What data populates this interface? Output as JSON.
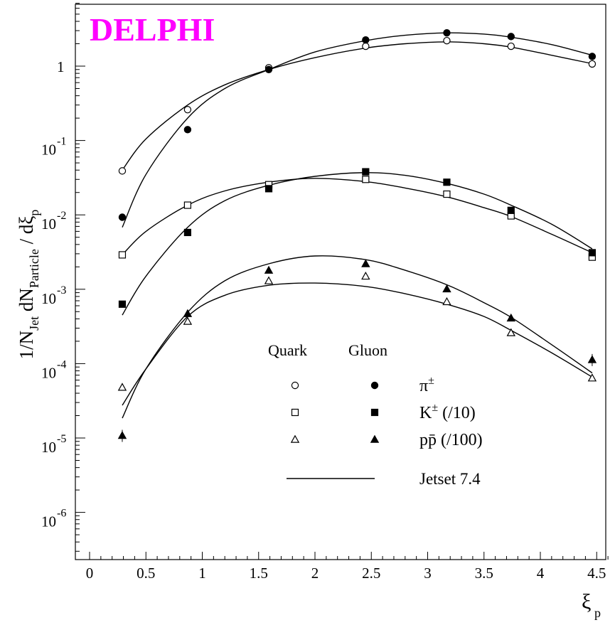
{
  "chart_data": {
    "type": "scatter",
    "title": "DELPHI",
    "title_color": "#ff00ff",
    "xlabel": "ξ",
    "xlabel_sub": "p",
    "ylabel_parts": [
      "1/N",
      "Jet",
      " dN",
      "Particle",
      " / dξ",
      "p"
    ],
    "x_ticks": [
      "0",
      "0.5",
      "1",
      "1.5",
      "2",
      "2.5",
      "3",
      "3.5",
      "4",
      "4.5"
    ],
    "y_ticks": [
      {
        "base": "10",
        "exp": "-6"
      },
      {
        "base": "10",
        "exp": "-5"
      },
      {
        "base": "10",
        "exp": "-4"
      },
      {
        "base": "10",
        "exp": "-3"
      },
      {
        "base": "10",
        "exp": "-2"
      },
      {
        "base": "10",
        "exp": "-1"
      },
      {
        "base": "1",
        "exp": ""
      }
    ],
    "xlim": [
      -0.1,
      4.65
    ],
    "ylim_log10": [
      -6.6,
      0.85
    ],
    "y_scale": "log",
    "grid": false,
    "legend": {
      "placement": "bottom-right",
      "col_quark": "Quark",
      "col_gluon": "Gluon",
      "rows": [
        {
          "label": "π",
          "sup": "±",
          "tail": "",
          "marker": "circle"
        },
        {
          "label": "K",
          "sup": "±",
          "tail": " (/10)",
          "marker": "square"
        },
        {
          "label": "pp̄",
          "sup": "",
          "tail": "  (/100)",
          "marker": "triangle"
        }
      ],
      "line_label": "Jetset 7.4"
    },
    "x": [
      0.29,
      0.87,
      1.59,
      2.45,
      3.17,
      3.74,
      4.46
    ],
    "series": [
      {
        "name": "π± Quark",
        "marker": "circle",
        "filled": false,
        "values": [
          0.039,
          0.26,
          0.95,
          1.85,
          2.2,
          1.85,
          1.07
        ]
      },
      {
        "name": "π± Gluon",
        "marker": "circle",
        "filled": true,
        "values": [
          0.0093,
          0.14,
          0.9,
          2.25,
          2.8,
          2.5,
          1.35
        ]
      },
      {
        "name": "K± Quark",
        "marker": "square",
        "filled": false,
        "values": [
          0.0029,
          0.0135,
          0.0255,
          0.03,
          0.019,
          0.0097,
          0.0027
        ]
      },
      {
        "name": "K± Gluon",
        "marker": "square",
        "filled": true,
        "values": [
          0.00063,
          0.0058,
          0.0225,
          0.038,
          0.0275,
          0.0115,
          0.0031
        ]
      },
      {
        "name": "pp̄ Quark",
        "marker": "triangle",
        "filled": false,
        "values": [
          4.8e-05,
          0.00037,
          0.0013,
          0.0015,
          0.00068,
          0.00026,
          6.4e-05
        ]
      },
      {
        "name": "pp̄ Gluon",
        "marker": "triangle",
        "filled": true,
        "values": [
          1.08e-05,
          0.00047,
          0.0018,
          0.0022,
          0.00101,
          0.00041,
          0.000113
        ]
      }
    ],
    "curves": [
      {
        "name": "π± Quark Jetset",
        "points": [
          [
            0.29,
            0.04
          ],
          [
            0.5,
            0.105
          ],
          [
            0.87,
            0.3
          ],
          [
            1.2,
            0.56
          ],
          [
            1.59,
            0.9
          ],
          [
            2.0,
            1.3
          ],
          [
            2.45,
            1.75
          ],
          [
            2.8,
            2.0
          ],
          [
            3.17,
            2.12
          ],
          [
            3.5,
            2.0
          ],
          [
            3.74,
            1.8
          ],
          [
            4.1,
            1.4
          ],
          [
            4.46,
            1.08
          ]
        ]
      },
      {
        "name": "π± Gluon Jetset",
        "points": [
          [
            0.29,
            0.0068
          ],
          [
            0.5,
            0.035
          ],
          [
            0.87,
            0.2
          ],
          [
            1.2,
            0.5
          ],
          [
            1.59,
            0.9
          ],
          [
            2.0,
            1.55
          ],
          [
            2.45,
            2.2
          ],
          [
            2.8,
            2.6
          ],
          [
            3.17,
            2.8
          ],
          [
            3.5,
            2.7
          ],
          [
            3.74,
            2.45
          ],
          [
            4.1,
            1.95
          ],
          [
            4.46,
            1.4
          ]
        ]
      },
      {
        "name": "K± Quark Jetset",
        "points": [
          [
            0.29,
            0.0029
          ],
          [
            0.5,
            0.006
          ],
          [
            0.87,
            0.0135
          ],
          [
            1.2,
            0.021
          ],
          [
            1.59,
            0.0275
          ],
          [
            2.0,
            0.031
          ],
          [
            2.45,
            0.028
          ],
          [
            2.8,
            0.023
          ],
          [
            3.17,
            0.0175
          ],
          [
            3.5,
            0.0125
          ],
          [
            3.74,
            0.0095
          ],
          [
            4.1,
            0.0055
          ],
          [
            4.46,
            0.0031
          ]
        ]
      },
      {
        "name": "K± Gluon Jetset",
        "points": [
          [
            0.29,
            0.00045
          ],
          [
            0.5,
            0.0015
          ],
          [
            0.87,
            0.0068
          ],
          [
            1.2,
            0.0155
          ],
          [
            1.59,
            0.025
          ],
          [
            2.0,
            0.033
          ],
          [
            2.45,
            0.037
          ],
          [
            2.8,
            0.034
          ],
          [
            3.17,
            0.0265
          ],
          [
            3.5,
            0.019
          ],
          [
            3.74,
            0.0135
          ],
          [
            4.1,
            0.0075
          ],
          [
            4.46,
            0.0035
          ]
        ]
      },
      {
        "name": "pp̄ Quark Jetset",
        "points": [
          [
            0.29,
            2.75e-05
          ],
          [
            0.5,
            8.5e-05
          ],
          [
            0.87,
            0.00043
          ],
          [
            1.2,
            0.00083
          ],
          [
            1.59,
            0.00113
          ],
          [
            2.0,
            0.00121
          ],
          [
            2.45,
            0.00109
          ],
          [
            2.8,
            0.00087
          ],
          [
            3.17,
            0.00063
          ],
          [
            3.5,
            0.00043
          ],
          [
            3.74,
            0.00028
          ],
          [
            4.1,
            0.00014
          ],
          [
            4.46,
            6.6e-05
          ]
        ]
      },
      {
        "name": "pp̄ Gluon Jetset",
        "points": [
          [
            0.29,
            1.85e-05
          ],
          [
            0.5,
            8.5e-05
          ],
          [
            0.87,
            0.00049
          ],
          [
            1.2,
            0.0013
          ],
          [
            1.59,
            0.0022
          ],
          [
            2.0,
            0.0028
          ],
          [
            2.45,
            0.0025
          ],
          [
            2.8,
            0.0018
          ],
          [
            3.17,
            0.00115
          ],
          [
            3.5,
            0.00066
          ],
          [
            3.74,
            0.00042
          ],
          [
            4.1,
            0.00018
          ],
          [
            4.46,
            7.5e-05
          ]
        ]
      }
    ]
  }
}
